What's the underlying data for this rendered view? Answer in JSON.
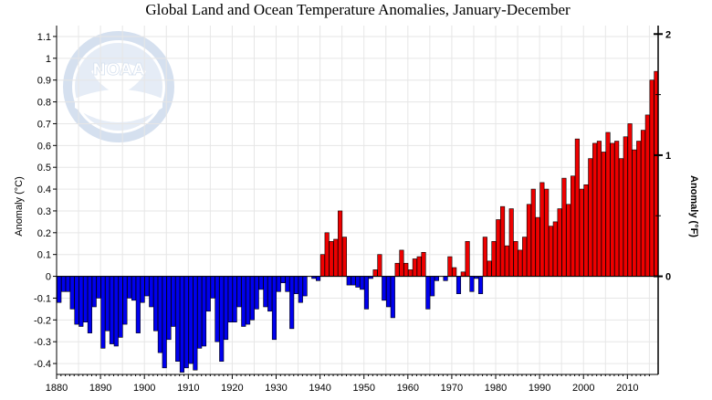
{
  "chart_data": {
    "type": "bar",
    "title": "Global Land and Ocean Temperature Anomalies, January-December",
    "ylabel": "Anomaly (°C)",
    "y2label": "Anomaly (°F)",
    "ylim": [
      -0.45,
      1.15
    ],
    "y_ticks": [
      "-0.4",
      "-0.3",
      "-0.2",
      "-0.1",
      "0",
      "0.1",
      "0.2",
      "0.3",
      "0.4",
      "0.5",
      "0.6",
      "0.7",
      "0.8",
      "0.9",
      "1",
      "1.1"
    ],
    "y2_ticks": [
      "0",
      "1",
      "2"
    ],
    "x_ticks": [
      "1880",
      "1890",
      "1900",
      "1910",
      "1920",
      "1930",
      "1940",
      "1950",
      "1960",
      "1970",
      "1980",
      "1990",
      "2000",
      "2010"
    ],
    "grid": true,
    "positive_color": "#ee0000",
    "negative_color": "#0000ee",
    "watermark": "NOAA",
    "watermark_ring_text": "NATIONAL OCEANIC AND ATMOSPHERIC ADMINISTRATION · U.S. DEPARTMENT OF COMMERCE",
    "x": [
      1880,
      1881,
      1882,
      1883,
      1884,
      1885,
      1886,
      1887,
      1888,
      1889,
      1890,
      1891,
      1892,
      1893,
      1894,
      1895,
      1896,
      1897,
      1898,
      1899,
      1900,
      1901,
      1902,
      1903,
      1904,
      1905,
      1906,
      1907,
      1908,
      1909,
      1910,
      1911,
      1912,
      1913,
      1914,
      1915,
      1916,
      1917,
      1918,
      1919,
      1920,
      1921,
      1922,
      1923,
      1924,
      1925,
      1926,
      1927,
      1928,
      1929,
      1930,
      1931,
      1932,
      1933,
      1934,
      1935,
      1936,
      1937,
      1938,
      1939,
      1940,
      1941,
      1942,
      1943,
      1944,
      1945,
      1946,
      1947,
      1948,
      1949,
      1950,
      1951,
      1952,
      1953,
      1954,
      1955,
      1956,
      1957,
      1958,
      1959,
      1960,
      1961,
      1962,
      1963,
      1964,
      1965,
      1966,
      1967,
      1968,
      1969,
      1970,
      1971,
      1972,
      1973,
      1974,
      1975,
      1976,
      1977,
      1978,
      1979,
      1980,
      1981,
      1982,
      1983,
      1984,
      1985,
      1986,
      1987,
      1988,
      1989,
      1990,
      1991,
      1992,
      1993,
      1994,
      1995,
      1996,
      1997,
      1998,
      1999,
      2000,
      2001,
      2002,
      2003,
      2004,
      2005,
      2006,
      2007,
      2008,
      2009,
      2010,
      2011,
      2012,
      2013,
      2014,
      2015,
      2016
    ],
    "values": [
      -0.12,
      -0.07,
      -0.07,
      -0.15,
      -0.22,
      -0.23,
      -0.21,
      -0.26,
      -0.14,
      -0.1,
      -0.33,
      -0.25,
      -0.31,
      -0.32,
      -0.28,
      -0.22,
      -0.1,
      -0.11,
      -0.26,
      -0.12,
      -0.09,
      -0.14,
      -0.25,
      -0.35,
      -0.42,
      -0.29,
      -0.23,
      -0.39,
      -0.44,
      -0.42,
      -0.4,
      -0.43,
      -0.33,
      -0.32,
      -0.16,
      -0.1,
      -0.3,
      -0.39,
      -0.29,
      -0.21,
      -0.21,
      -0.14,
      -0.23,
      -0.22,
      -0.2,
      -0.15,
      -0.06,
      -0.14,
      -0.16,
      -0.29,
      -0.07,
      -0.03,
      -0.07,
      -0.24,
      -0.08,
      -0.12,
      -0.09,
      0.0,
      -0.01,
      -0.02,
      0.1,
      0.2,
      0.16,
      0.17,
      0.3,
      0.18,
      -0.04,
      -0.04,
      -0.05,
      -0.06,
      -0.15,
      -0.01,
      0.03,
      0.1,
      -0.11,
      -0.14,
      -0.19,
      0.06,
      0.12,
      0.06,
      0.03,
      0.08,
      0.09,
      0.11,
      -0.15,
      -0.09,
      -0.02,
      0.0,
      -0.02,
      0.09,
      0.04,
      -0.08,
      0.02,
      0.16,
      -0.07,
      -0.01,
      -0.08,
      0.18,
      0.07,
      0.16,
      0.26,
      0.32,
      0.14,
      0.31,
      0.16,
      0.12,
      0.18,
      0.33,
      0.4,
      0.27,
      0.43,
      0.4,
      0.23,
      0.25,
      0.31,
      0.45,
      0.33,
      0.46,
      0.63,
      0.4,
      0.42,
      0.54,
      0.61,
      0.62,
      0.57,
      0.66,
      0.61,
      0.62,
      0.54,
      0.64,
      0.7,
      0.58,
      0.62,
      0.67,
      0.74,
      0.9,
      0.94
    ]
  }
}
